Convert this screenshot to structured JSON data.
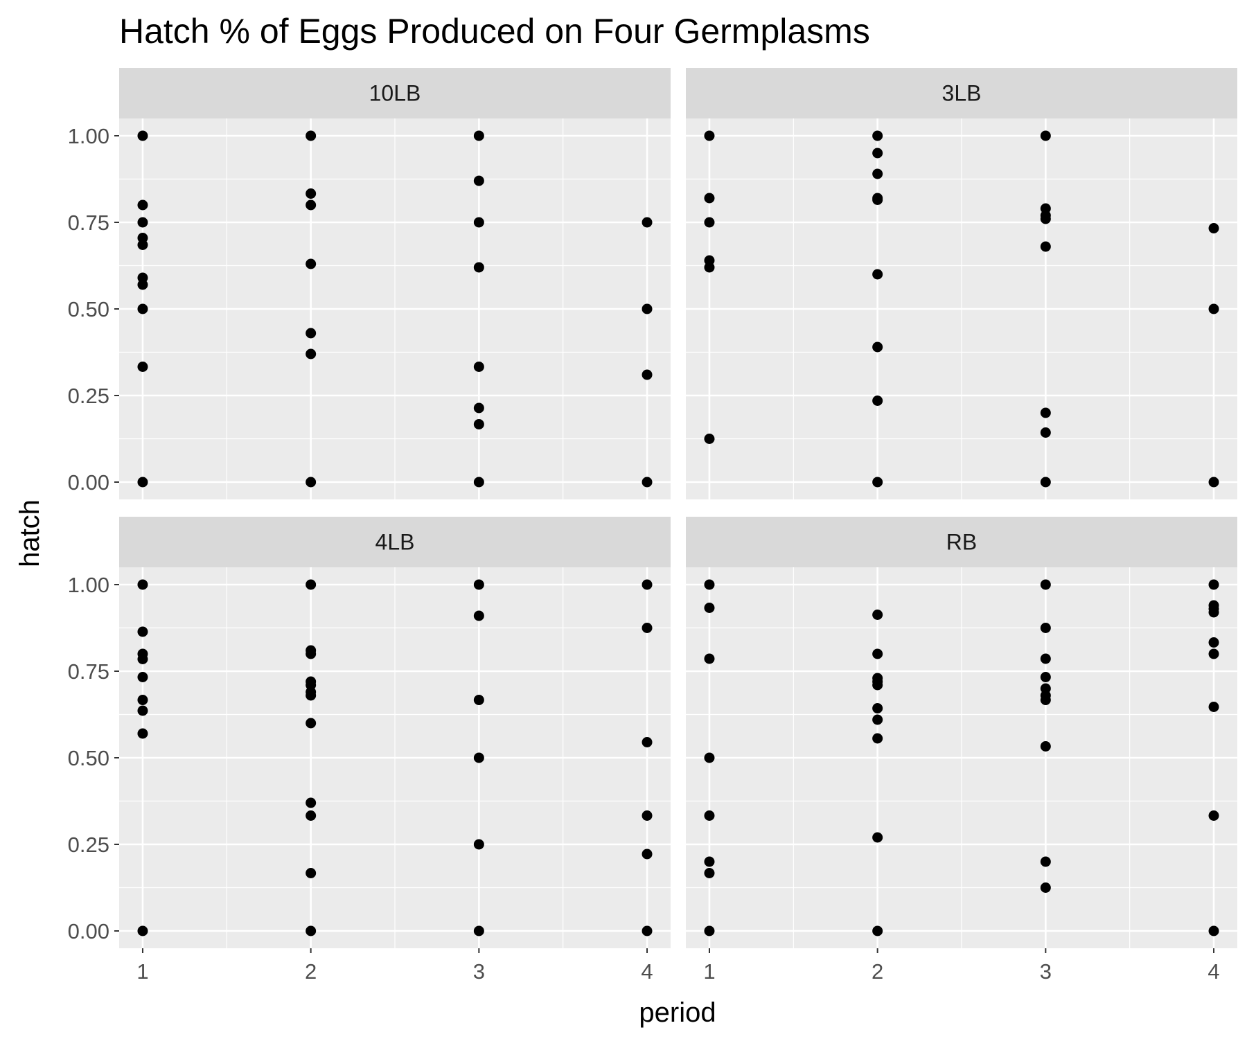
{
  "chart_data": {
    "type": "scatter",
    "title": "Hatch % of Eggs Produced on Four Germplasms",
    "xlabel": "period",
    "ylabel": "hatch",
    "x_ticks": [
      1,
      2,
      3,
      4
    ],
    "x_tick_labels": [
      "1",
      "2",
      "3",
      "4"
    ],
    "y_ticks": [
      0,
      0.25,
      0.5,
      0.75,
      1
    ],
    "y_tick_labels": [
      "0.00",
      "0.25",
      "0.50",
      "0.75",
      "1.00"
    ],
    "xlim": [
      0.86,
      4.14
    ],
    "ylim": [
      -0.05,
      1.05
    ],
    "grid": true,
    "colors": {
      "panel_bg": "#ebebeb",
      "strip_bg": "#d9d9d9",
      "grid": "#ffffff",
      "point": "#000000"
    },
    "panels": [
      {
        "label": "10LB",
        "points": [
          [
            1,
            1.0
          ],
          [
            1,
            0.8
          ],
          [
            1,
            0.75
          ],
          [
            1,
            0.705
          ],
          [
            1,
            0.685
          ],
          [
            1,
            0.59
          ],
          [
            1,
            0.57
          ],
          [
            1,
            0.5
          ],
          [
            1,
            0.333
          ],
          [
            1,
            0.0
          ],
          [
            2,
            1.0
          ],
          [
            2,
            0.833
          ],
          [
            2,
            0.8
          ],
          [
            2,
            0.63
          ],
          [
            2,
            0.43
          ],
          [
            2,
            0.37
          ],
          [
            2,
            0.0
          ],
          [
            3,
            1.0
          ],
          [
            3,
            0.87
          ],
          [
            3,
            0.75
          ],
          [
            3,
            0.62
          ],
          [
            3,
            0.333
          ],
          [
            3,
            0.214
          ],
          [
            3,
            0.167
          ],
          [
            3,
            0.0
          ],
          [
            4,
            0.75
          ],
          [
            4,
            0.5
          ],
          [
            4,
            0.31
          ],
          [
            4,
            0.0
          ]
        ]
      },
      {
        "label": "3LB",
        "points": [
          [
            1,
            1.0
          ],
          [
            1,
            0.82
          ],
          [
            1,
            0.75
          ],
          [
            1,
            0.64
          ],
          [
            1,
            0.62
          ],
          [
            1,
            0.125
          ],
          [
            2,
            1.0
          ],
          [
            2,
            0.95
          ],
          [
            2,
            0.89
          ],
          [
            2,
            0.82
          ],
          [
            2,
            0.815
          ],
          [
            2,
            0.6
          ],
          [
            2,
            0.39
          ],
          [
            2,
            0.235
          ],
          [
            2,
            0.0
          ],
          [
            3,
            1.0
          ],
          [
            3,
            0.79
          ],
          [
            3,
            0.77
          ],
          [
            3,
            0.76
          ],
          [
            3,
            0.68
          ],
          [
            3,
            0.2
          ],
          [
            3,
            0.143
          ],
          [
            3,
            0.0
          ],
          [
            4,
            0.733
          ],
          [
            4,
            0.5
          ],
          [
            4,
            0.0
          ]
        ]
      },
      {
        "label": "4LB",
        "points": [
          [
            1,
            1.0
          ],
          [
            1,
            0.864
          ],
          [
            1,
            0.8
          ],
          [
            1,
            0.785
          ],
          [
            1,
            0.733
          ],
          [
            1,
            0.667
          ],
          [
            1,
            0.636
          ],
          [
            1,
            0.57
          ],
          [
            1,
            0.0
          ],
          [
            2,
            1.0
          ],
          [
            2,
            0.81
          ],
          [
            2,
            0.8
          ],
          [
            2,
            0.72
          ],
          [
            2,
            0.71
          ],
          [
            2,
            0.69
          ],
          [
            2,
            0.68
          ],
          [
            2,
            0.6
          ],
          [
            2,
            0.37
          ],
          [
            2,
            0.333
          ],
          [
            2,
            0.167
          ],
          [
            2,
            0.0
          ],
          [
            3,
            1.0
          ],
          [
            3,
            0.91
          ],
          [
            3,
            0.667
          ],
          [
            3,
            0.5
          ],
          [
            3,
            0.25
          ],
          [
            3,
            0.0
          ],
          [
            4,
            1.0
          ],
          [
            4,
            0.875
          ],
          [
            4,
            0.545
          ],
          [
            4,
            0.333
          ],
          [
            4,
            0.222
          ],
          [
            4,
            0.0
          ]
        ]
      },
      {
        "label": "RB",
        "points": [
          [
            1,
            1.0
          ],
          [
            1,
            0.933
          ],
          [
            1,
            0.786
          ],
          [
            1,
            0.5
          ],
          [
            1,
            0.333
          ],
          [
            1,
            0.2
          ],
          [
            1,
            0.167
          ],
          [
            1,
            0.0
          ],
          [
            2,
            0.913
          ],
          [
            2,
            0.8
          ],
          [
            2,
            0.73
          ],
          [
            2,
            0.72
          ],
          [
            2,
            0.71
          ],
          [
            2,
            0.643
          ],
          [
            2,
            0.61
          ],
          [
            2,
            0.556
          ],
          [
            2,
            0.27
          ],
          [
            2,
            0.0
          ],
          [
            3,
            1.0
          ],
          [
            3,
            0.875
          ],
          [
            3,
            0.786
          ],
          [
            3,
            0.733
          ],
          [
            3,
            0.7
          ],
          [
            3,
            0.68
          ],
          [
            3,
            0.667
          ],
          [
            3,
            0.533
          ],
          [
            3,
            0.2
          ],
          [
            3,
            0.125
          ],
          [
            4,
            1.0
          ],
          [
            4,
            0.94
          ],
          [
            4,
            0.93
          ],
          [
            4,
            0.92
          ],
          [
            4,
            0.833
          ],
          [
            4,
            0.8
          ],
          [
            4,
            0.647
          ],
          [
            4,
            0.333
          ],
          [
            4,
            0.0
          ]
        ]
      }
    ]
  }
}
